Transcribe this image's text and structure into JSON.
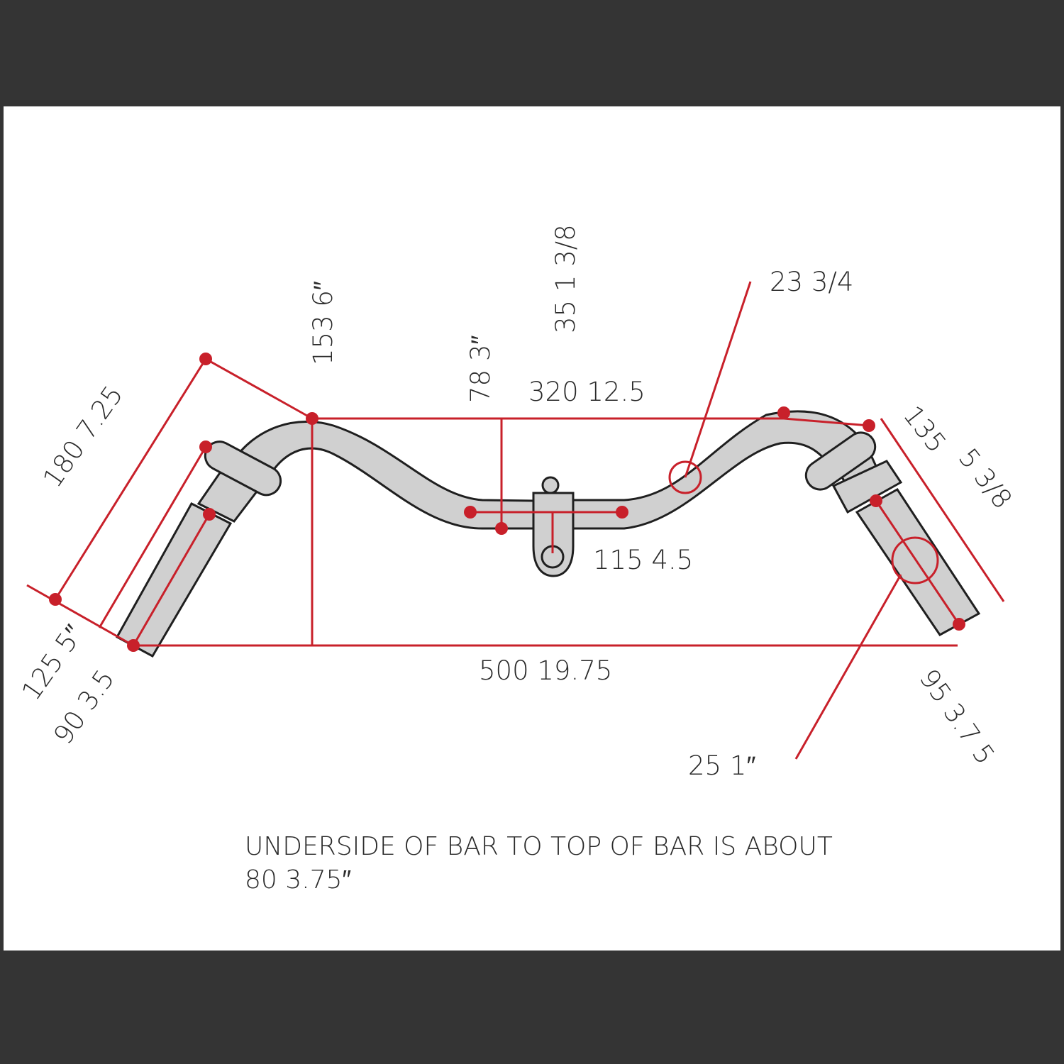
{
  "colors": {
    "background_border": "#343434",
    "paper": "#ffffff",
    "dimension_lines": "#c8202a",
    "bar_fill": "#d0d0d0",
    "outline": "#1f1f1f",
    "text": "#2a2a2a"
  },
  "dimensions": {
    "rise_135": "153   6″",
    "grip_angle_length": "180   7.25",
    "grip_to_bend": "125   5″",
    "grip_length_left": "90   3.5",
    "stem_height": "78   3″",
    "clamp_dia": "35   1 3/8",
    "top_width": "320   12.5",
    "bar_dia": "23   3/4",
    "right_upper": "135",
    "right_upper_in": "5 3/8",
    "clamp_width": "115   4.5",
    "total_width": "500   19.75",
    "grip_length_right": "95   3.7 5",
    "grip_dia": "25   1″"
  },
  "note": {
    "line1": "UNDERSIDE OF BAR TO TOP OF BAR IS ABOUT",
    "line2": "80    3.75″"
  }
}
